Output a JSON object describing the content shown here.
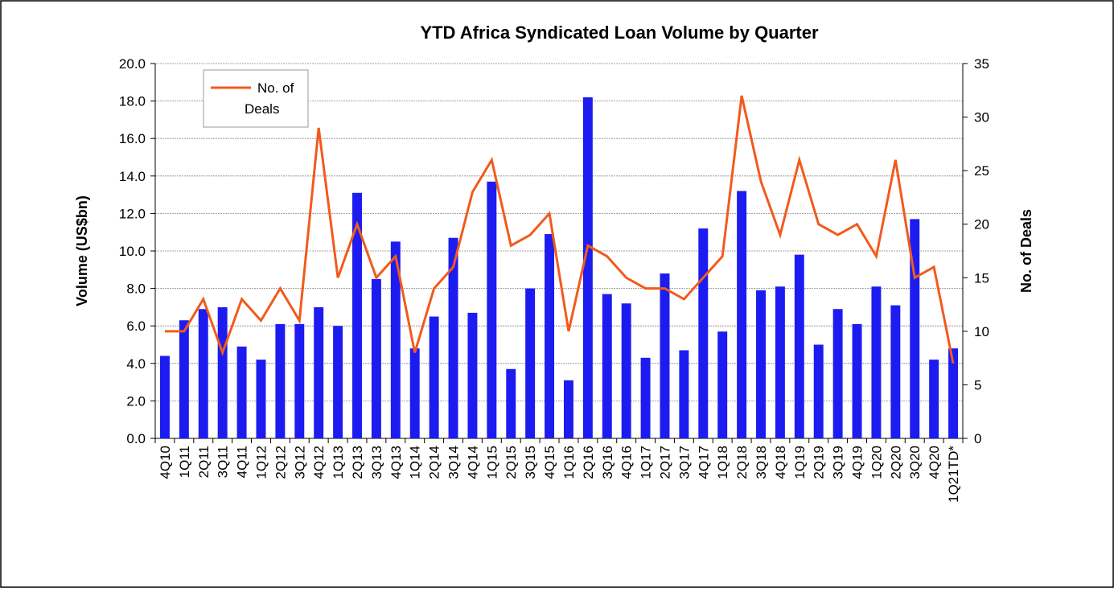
{
  "chart_data": {
    "type": "bar-line",
    "title": "YTD Africa Syndicated Loan Volume by Quarter",
    "ylabel": "Volume (US$bn)",
    "y2label": "No. of Deals",
    "categories": [
      "4Q10",
      "1Q11",
      "2Q11",
      "3Q11",
      "4Q11",
      "1Q12",
      "2Q12",
      "3Q12",
      "4Q12",
      "1Q13",
      "2Q13",
      "3Q13",
      "4Q13",
      "1Q14",
      "2Q14",
      "3Q14",
      "4Q14",
      "1Q15",
      "2Q15",
      "3Q15",
      "4Q15",
      "1Q16",
      "2Q16",
      "3Q16",
      "4Q16",
      "1Q17",
      "2Q17",
      "3Q17",
      "4Q17",
      "1Q18",
      "2Q18",
      "3Q18",
      "4Q18",
      "1Q19",
      "2Q19",
      "3Q19",
      "4Q19",
      "1Q20",
      "2Q20",
      "3Q20",
      "4Q20",
      "1Q21TD*"
    ],
    "series": [
      {
        "type": "bar",
        "color": "#1c1cf0",
        "axis": "y",
        "values": [
          4.4,
          6.3,
          6.9,
          7.0,
          4.9,
          4.2,
          6.1,
          6.1,
          7.0,
          6.0,
          13.1,
          8.5,
          10.5,
          4.8,
          6.5,
          10.7,
          6.7,
          13.7,
          3.7,
          8.0,
          10.9,
          3.1,
          18.2,
          7.7,
          7.2,
          4.3,
          8.8,
          4.7,
          11.2,
          5.7,
          13.2,
          7.9,
          8.1,
          9.8,
          5.0,
          6.9,
          6.1,
          8.1,
          7.1,
          11.7,
          4.2,
          4.8
        ]
      },
      {
        "type": "line",
        "name": "No. of Deals",
        "color": "#f25a1c",
        "axis": "y2",
        "values": [
          10,
          10,
          13,
          8,
          13,
          11,
          14,
          11,
          29,
          15,
          20,
          15,
          17,
          8,
          14,
          16,
          23,
          26,
          18,
          19,
          21,
          10,
          18,
          17,
          15,
          14,
          14,
          13,
          15,
          17,
          32,
          24,
          19,
          26,
          20,
          19,
          20,
          17,
          26,
          15,
          16,
          7
        ]
      }
    ],
    "ylim": [
      0,
      20
    ],
    "yticks": [
      {
        "value": 0,
        "label": "0.0"
      },
      {
        "value": 2,
        "label": "2.0"
      },
      {
        "value": 4,
        "label": "4.0"
      },
      {
        "value": 6,
        "label": "6.0"
      },
      {
        "value": 8,
        "label": "8.0"
      },
      {
        "value": 10,
        "label": "10.0"
      },
      {
        "value": 12,
        "label": "12.0"
      },
      {
        "value": 14,
        "label": "14.0"
      },
      {
        "value": 16,
        "label": "16.0"
      },
      {
        "value": 18,
        "label": "18.0"
      },
      {
        "value": 20,
        "label": "20.0"
      }
    ],
    "y2lim": [
      0,
      35
    ],
    "y2ticks": [
      0,
      5,
      10,
      15,
      20,
      25,
      30,
      35
    ],
    "grid": true,
    "legend": "upper left"
  }
}
